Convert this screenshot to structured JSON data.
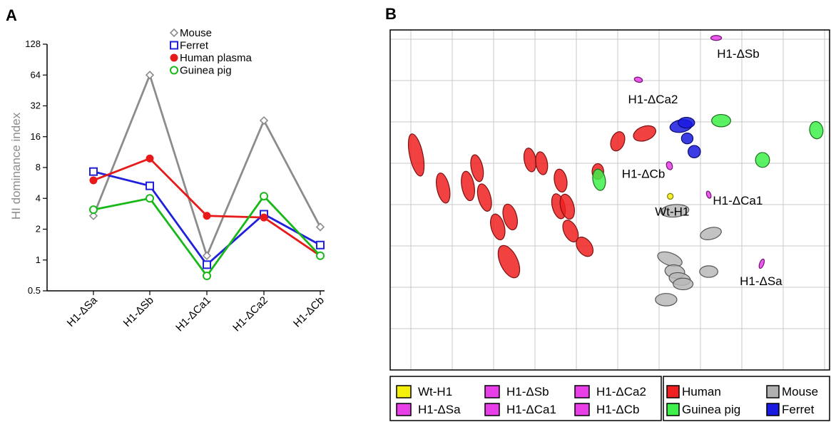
{
  "chart_data": [
    {
      "panel": "A",
      "type": "line",
      "xlabel": "",
      "ylabel": "HI dominance index",
      "y_scale": "log2",
      "ylim": [
        0.5,
        128
      ],
      "yticks": [
        "0.5",
        "1",
        "2",
        "4",
        "8",
        "16",
        "32",
        "64",
        "128"
      ],
      "categories": [
        "H1-ΔSa",
        "H1-ΔSb",
        "H1-ΔCa1",
        "H1-ΔCa2",
        "H1-ΔCb"
      ],
      "legend_position": "top-center",
      "series": [
        {
          "name": "Mouse",
          "color": "#8c8c8c",
          "marker": "diamond-open",
          "values": [
            2.7,
            64,
            1.1,
            23,
            2.1
          ]
        },
        {
          "name": "Ferret",
          "color": "#1f1fdc",
          "marker": "square-open",
          "values": [
            7.3,
            5.3,
            0.9,
            2.8,
            1.4
          ]
        },
        {
          "name": "Human plasma",
          "color": "#e81919",
          "marker": "circle-filled",
          "values": [
            6.0,
            9.8,
            2.7,
            2.6,
            1.1
          ]
        },
        {
          "name": "Guinea pig",
          "color": "#17b817",
          "marker": "circle-open",
          "values": [
            3.1,
            4.0,
            0.7,
            4.2,
            1.1
          ]
        }
      ]
    },
    {
      "panel": "B",
      "type": "scatter",
      "subtype": "antigenic-cartography",
      "grid": true,
      "grid_spacing": 1,
      "xlim": [
        0,
        10.5
      ],
      "ylim": [
        0,
        8.4
      ],
      "groups": {
        "Human": {
          "fill": "#f02020",
          "stroke": "#7a1010",
          "ellipses": [
            [
              0.63,
              5.2,
              0.16,
              0.52,
              -12
            ],
            [
              1.28,
              4.4,
              0.15,
              0.37,
              -12
            ],
            [
              1.88,
              4.45,
              0.15,
              0.36,
              -10
            ],
            [
              2.1,
              4.88,
              0.14,
              0.33,
              -12
            ],
            [
              2.28,
              4.17,
              0.15,
              0.34,
              -15
            ],
            [
              2.6,
              3.46,
              0.16,
              0.32,
              -15
            ],
            [
              2.9,
              3.7,
              0.16,
              0.32,
              -15
            ],
            [
              2.87,
              2.62,
              0.21,
              0.42,
              -25
            ],
            [
              3.38,
              5.08,
              0.14,
              0.29,
              -10
            ],
            [
              3.66,
              5.0,
              0.14,
              0.28,
              -10
            ],
            [
              4.12,
              4.58,
              0.15,
              0.28,
              -10
            ],
            [
              4.07,
              3.96,
              0.15,
              0.31,
              -15
            ],
            [
              4.28,
              3.95,
              0.16,
              0.31,
              -15
            ],
            [
              4.36,
              3.36,
              0.16,
              0.28,
              -25
            ],
            [
              4.7,
              2.98,
              0.17,
              0.26,
              -35
            ],
            [
              5.02,
              4.8,
              0.14,
              0.19,
              0
            ],
            [
              5.5,
              5.53,
              0.16,
              0.24,
              20
            ],
            [
              6.15,
              5.72,
              0.28,
              0.17,
              -20
            ]
          ]
        },
        "Guinea pig": {
          "fill": "#3ef04a",
          "stroke": "#1a6e1a",
          "ellipses": [
            [
              5.05,
              4.6,
              0.15,
              0.26,
              -10
            ],
            [
              8.0,
              6.03,
              0.23,
              0.15,
              0
            ],
            [
              9.0,
              5.08,
              0.17,
              0.18,
              0
            ],
            [
              10.3,
              5.8,
              0.16,
              0.21,
              -10
            ]
          ]
        },
        "Ferret": {
          "fill": "#1a1ae0",
          "stroke": "#0a0a70",
          "ellipses": [
            [
              7.03,
              5.9,
              0.27,
              0.15,
              -10
            ],
            [
              7.16,
              5.98,
              0.2,
              0.13,
              0
            ],
            [
              7.18,
              5.6,
              0.14,
              0.13,
              0
            ],
            [
              7.35,
              5.28,
              0.15,
              0.15,
              0
            ]
          ]
        },
        "Mouse": {
          "fill": "#b8b8b8",
          "stroke": "#555555",
          "ellipses": [
            [
              6.88,
              3.85,
              0.34,
              0.15,
              -5
            ],
            [
              7.75,
              3.3,
              0.26,
              0.14,
              -15
            ],
            [
              6.76,
              2.68,
              0.31,
              0.15,
              20
            ],
            [
              6.88,
              2.38,
              0.24,
              0.16,
              10
            ],
            [
              7.0,
              2.2,
              0.26,
              0.15,
              10
            ],
            [
              7.08,
              2.08,
              0.24,
              0.14,
              0
            ],
            [
              7.7,
              2.38,
              0.22,
              0.14,
              0
            ],
            [
              6.67,
              1.7,
              0.26,
              0.15,
              0
            ]
          ]
        },
        "Wt-H1": {
          "fill": "#f5f00a",
          "stroke": "#7a7a00",
          "ellipses": [
            [
              6.77,
              4.2,
              0.07,
              0.07,
              0
            ]
          ]
        },
        "H1-ΔSa": {
          "fill": "#e83ee8",
          "stroke": "#701070",
          "ellipses": [
            [
              8.98,
              2.57,
              0.05,
              0.12,
              20
            ]
          ]
        },
        "H1-ΔSb": {
          "fill": "#e83ee8",
          "stroke": "#701070",
          "ellipses": [
            [
              7.88,
              8.03,
              0.13,
              0.06,
              0
            ]
          ]
        },
        "H1-ΔCa1": {
          "fill": "#e83ee8",
          "stroke": "#701070",
          "ellipses": [
            [
              7.7,
              4.24,
              0.05,
              0.09,
              -20
            ]
          ]
        },
        "H1-ΔCa2": {
          "fill": "#e83ee8",
          "stroke": "#701070",
          "ellipses": [
            [
              6.0,
              7.02,
              0.1,
              0.06,
              15
            ]
          ]
        },
        "H1-ΔCb": {
          "fill": "#e83ee8",
          "stroke": "#701070",
          "ellipses": [
            [
              6.75,
              4.94,
              0.07,
              0.1,
              -20
            ]
          ]
        }
      },
      "annotations": [
        {
          "text": "H1-ΔSb",
          "x": 7.9,
          "y": 7.55
        },
        {
          "text": "H1-ΔCa2",
          "x": 5.75,
          "y": 6.45
        },
        {
          "text": "H1-ΔCb",
          "x": 5.6,
          "y": 4.65
        },
        {
          "text": "Wt-H1",
          "x": 6.4,
          "y": 3.73
        },
        {
          "text": "H1-ΔCa1",
          "x": 7.8,
          "y": 4.0
        },
        {
          "text": "H1-ΔSa",
          "x": 8.45,
          "y": 2.05
        }
      ],
      "legend_virus": [
        {
          "label": "Wt-H1",
          "color": "#f5f00a"
        },
        {
          "label": "H1-ΔSb",
          "color": "#e83ee8"
        },
        {
          "label": "H1-ΔCa2",
          "color": "#e83ee8"
        },
        {
          "label": "H1-ΔSa",
          "color": "#e83ee8"
        },
        {
          "label": "H1-ΔCa1",
          "color": "#e83ee8"
        },
        {
          "label": "H1-ΔCb",
          "color": "#e83ee8"
        }
      ],
      "legend_species": [
        {
          "label": "Human",
          "color": "#f02020"
        },
        {
          "label": "Mouse",
          "color": "#b0b0b0"
        },
        {
          "label": "Guinea pig",
          "color": "#3ef04a"
        },
        {
          "label": "Ferret",
          "color": "#1a1ae0"
        }
      ]
    }
  ],
  "panel_labels": {
    "a": "A",
    "b": "B"
  }
}
